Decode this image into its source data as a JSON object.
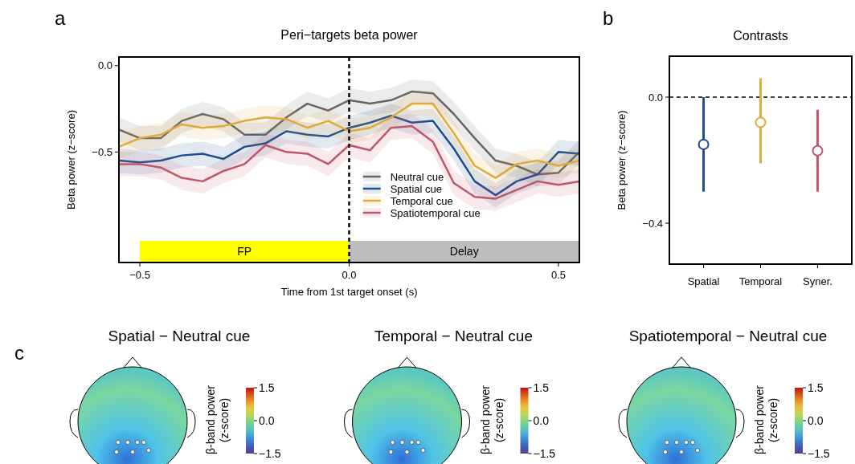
{
  "chart_data": [
    {
      "type": "line",
      "title": "Peri−targets beta power",
      "xlabel": "Time from 1st target onset (s)",
      "ylabel": "Beta power (z−score)",
      "annotations": [
        "a"
      ],
      "x": [
        -0.55,
        -0.5,
        -0.45,
        -0.4,
        -0.35,
        -0.3,
        -0.25,
        -0.2,
        -0.15,
        -0.1,
        -0.05,
        0,
        0.05,
        0.1,
        0.15,
        0.2,
        0.25,
        0.3,
        0.35,
        0.4,
        0.45,
        0.5,
        0.55
      ],
      "series": [
        {
          "name": "Neutral cue",
          "color": "#666666",
          "values": [
            -0.37,
            -0.42,
            -0.42,
            -0.32,
            -0.28,
            -0.31,
            -0.4,
            -0.4,
            -0.3,
            -0.22,
            -0.26,
            -0.2,
            -0.22,
            -0.2,
            -0.15,
            -0.16,
            -0.28,
            -0.42,
            -0.55,
            -0.58,
            -0.63,
            -0.62,
            -0.5
          ],
          "lower": [
            -0.44,
            -0.49,
            -0.49,
            -0.39,
            -0.35,
            -0.38,
            -0.47,
            -0.47,
            -0.37,
            -0.29,
            -0.33,
            -0.27,
            -0.29,
            -0.27,
            -0.22,
            -0.23,
            -0.35,
            -0.49,
            -0.62,
            -0.65,
            -0.7,
            -0.69,
            -0.57
          ],
          "upper": [
            -0.3,
            -0.35,
            -0.35,
            -0.25,
            -0.21,
            -0.24,
            -0.33,
            -0.33,
            -0.23,
            -0.15,
            -0.19,
            -0.13,
            -0.15,
            -0.13,
            -0.08,
            -0.09,
            -0.21,
            -0.35,
            -0.48,
            -0.51,
            -0.56,
            -0.55,
            -0.43
          ]
        },
        {
          "name": "Spatial cue",
          "color": "#1f4e8c",
          "values": [
            -0.55,
            -0.56,
            -0.55,
            -0.52,
            -0.51,
            -0.54,
            -0.47,
            -0.45,
            -0.38,
            -0.4,
            -0.41,
            -0.36,
            -0.33,
            -0.29,
            -0.33,
            -0.32,
            -0.48,
            -0.67,
            -0.75,
            -0.67,
            -0.63,
            -0.5,
            -0.51
          ],
          "lower": [
            -0.62,
            -0.63,
            -0.62,
            -0.59,
            -0.58,
            -0.61,
            -0.54,
            -0.52,
            -0.45,
            -0.47,
            -0.48,
            -0.43,
            -0.4,
            -0.36,
            -0.4,
            -0.39,
            -0.55,
            -0.74,
            -0.82,
            -0.74,
            -0.7,
            -0.57,
            -0.58
          ],
          "upper": [
            -0.48,
            -0.49,
            -0.48,
            -0.45,
            -0.44,
            -0.47,
            -0.4,
            -0.38,
            -0.31,
            -0.33,
            -0.34,
            -0.29,
            -0.26,
            -0.22,
            -0.26,
            -0.25,
            -0.41,
            -0.6,
            -0.68,
            -0.6,
            -0.56,
            -0.43,
            -0.44
          ]
        },
        {
          "name": "Temporal cue",
          "color": "#e0a93a",
          "values": [
            -0.47,
            -0.42,
            -0.4,
            -0.34,
            -0.36,
            -0.35,
            -0.32,
            -0.3,
            -0.31,
            -0.36,
            -0.32,
            -0.38,
            -0.36,
            -0.3,
            -0.22,
            -0.22,
            -0.39,
            -0.58,
            -0.65,
            -0.57,
            -0.55,
            -0.58,
            -0.55
          ],
          "lower": [
            -0.54,
            -0.49,
            -0.47,
            -0.41,
            -0.43,
            -0.42,
            -0.39,
            -0.37,
            -0.38,
            -0.43,
            -0.39,
            -0.45,
            -0.43,
            -0.37,
            -0.29,
            -0.29,
            -0.46,
            -0.65,
            -0.72,
            -0.64,
            -0.62,
            -0.65,
            -0.62
          ],
          "upper": [
            -0.4,
            -0.35,
            -0.33,
            -0.27,
            -0.29,
            -0.28,
            -0.25,
            -0.23,
            -0.24,
            -0.29,
            -0.25,
            -0.31,
            -0.29,
            -0.23,
            -0.15,
            -0.15,
            -0.32,
            -0.51,
            -0.58,
            -0.5,
            -0.48,
            -0.51,
            -0.48
          ]
        },
        {
          "name": "Spatiotemporal cue",
          "color": "#c0566a",
          "values": [
            -0.57,
            -0.57,
            -0.59,
            -0.65,
            -0.67,
            -0.61,
            -0.57,
            -0.46,
            -0.5,
            -0.51,
            -0.57,
            -0.46,
            -0.49,
            -0.36,
            -0.35,
            -0.44,
            -0.68,
            -0.76,
            -0.77,
            -0.72,
            -0.67,
            -0.69,
            -0.67
          ],
          "lower": [
            -0.64,
            -0.64,
            -0.66,
            -0.72,
            -0.74,
            -0.68,
            -0.64,
            -0.53,
            -0.57,
            -0.58,
            -0.64,
            -0.53,
            -0.56,
            -0.43,
            -0.42,
            -0.51,
            -0.75,
            -0.83,
            -0.84,
            -0.79,
            -0.74,
            -0.76,
            -0.74
          ],
          "upper": [
            -0.5,
            -0.5,
            -0.52,
            -0.58,
            -0.6,
            -0.54,
            -0.5,
            -0.39,
            -0.43,
            -0.44,
            -0.5,
            -0.39,
            -0.42,
            -0.29,
            -0.28,
            -0.37,
            -0.61,
            -0.69,
            -0.7,
            -0.65,
            -0.6,
            -0.62,
            -0.6
          ]
        }
      ],
      "xlim": [
        -0.55,
        0.55
      ],
      "ylim": [
        -1.14,
        0.05
      ],
      "xticks": [
        {
          "value": -0.5,
          "label": "−0.5"
        },
        {
          "value": 0,
          "label": "0.0"
        },
        {
          "value": 0.5,
          "label": "0.5"
        }
      ],
      "yticks": [
        {
          "value": -0.5,
          "label": "−0.5"
        },
        {
          "value": 0,
          "label": "0.0"
        }
      ],
      "ref_lines": [
        {
          "axis": "x",
          "value": 0,
          "color": "#000000",
          "line_style": "dashed"
        }
      ],
      "bands": [
        {
          "axis": "x",
          "from": -0.5,
          "to": 0,
          "label": "FP",
          "color": "#ffff00"
        },
        {
          "axis": "x",
          "from": 0,
          "to": 0.55,
          "label": "Delay",
          "color": "#bdbdbd"
        }
      ],
      "legend": "bottom",
      "grid": false
    },
    {
      "type": "scatter",
      "title": "Contrasts",
      "ylabel": "Beta power (z−score)",
      "annotations": [
        "b"
      ],
      "categories": [
        "Spatial",
        "Temporal",
        "Syner."
      ],
      "values": [
        -0.15,
        -0.08,
        -0.17
      ],
      "colors": [
        "#1f4e8c",
        "#e0a93a",
        "#c0566a"
      ],
      "errors": [
        [
          -0.3,
          0
        ],
        [
          -0.21,
          0.06
        ],
        [
          -0.3,
          -0.04
        ]
      ],
      "ylim": [
        -0.53,
        0.13
      ],
      "yticks": [
        {
          "value": -0.4,
          "label": "−0.4"
        },
        {
          "value": 0,
          "label": "0.0"
        }
      ],
      "ref_lines": [
        {
          "axis": "y",
          "value": 0,
          "color": "#000000",
          "line_style": "dashed"
        }
      ],
      "marker": "circle"
    },
    {
      "type": "other",
      "title": "Spatial − Neutral cue",
      "clabel": "β-band power (z-score)",
      "annotations": [
        "c",
        "1.5",
        "0.0",
        "−1.5"
      ]
    },
    {
      "type": "other",
      "title": "Temporal − Neutral cue",
      "clabel": "β-band power (z-score)",
      "annotations": [
        "1.5",
        "0.0",
        "−1.5"
      ]
    },
    {
      "type": "other",
      "title": "Spatiotemporal − Neutral cue",
      "clabel": "β-band power (z-score)",
      "annotations": [
        "1.5",
        "0.0",
        "−1.5"
      ]
    }
  ]
}
